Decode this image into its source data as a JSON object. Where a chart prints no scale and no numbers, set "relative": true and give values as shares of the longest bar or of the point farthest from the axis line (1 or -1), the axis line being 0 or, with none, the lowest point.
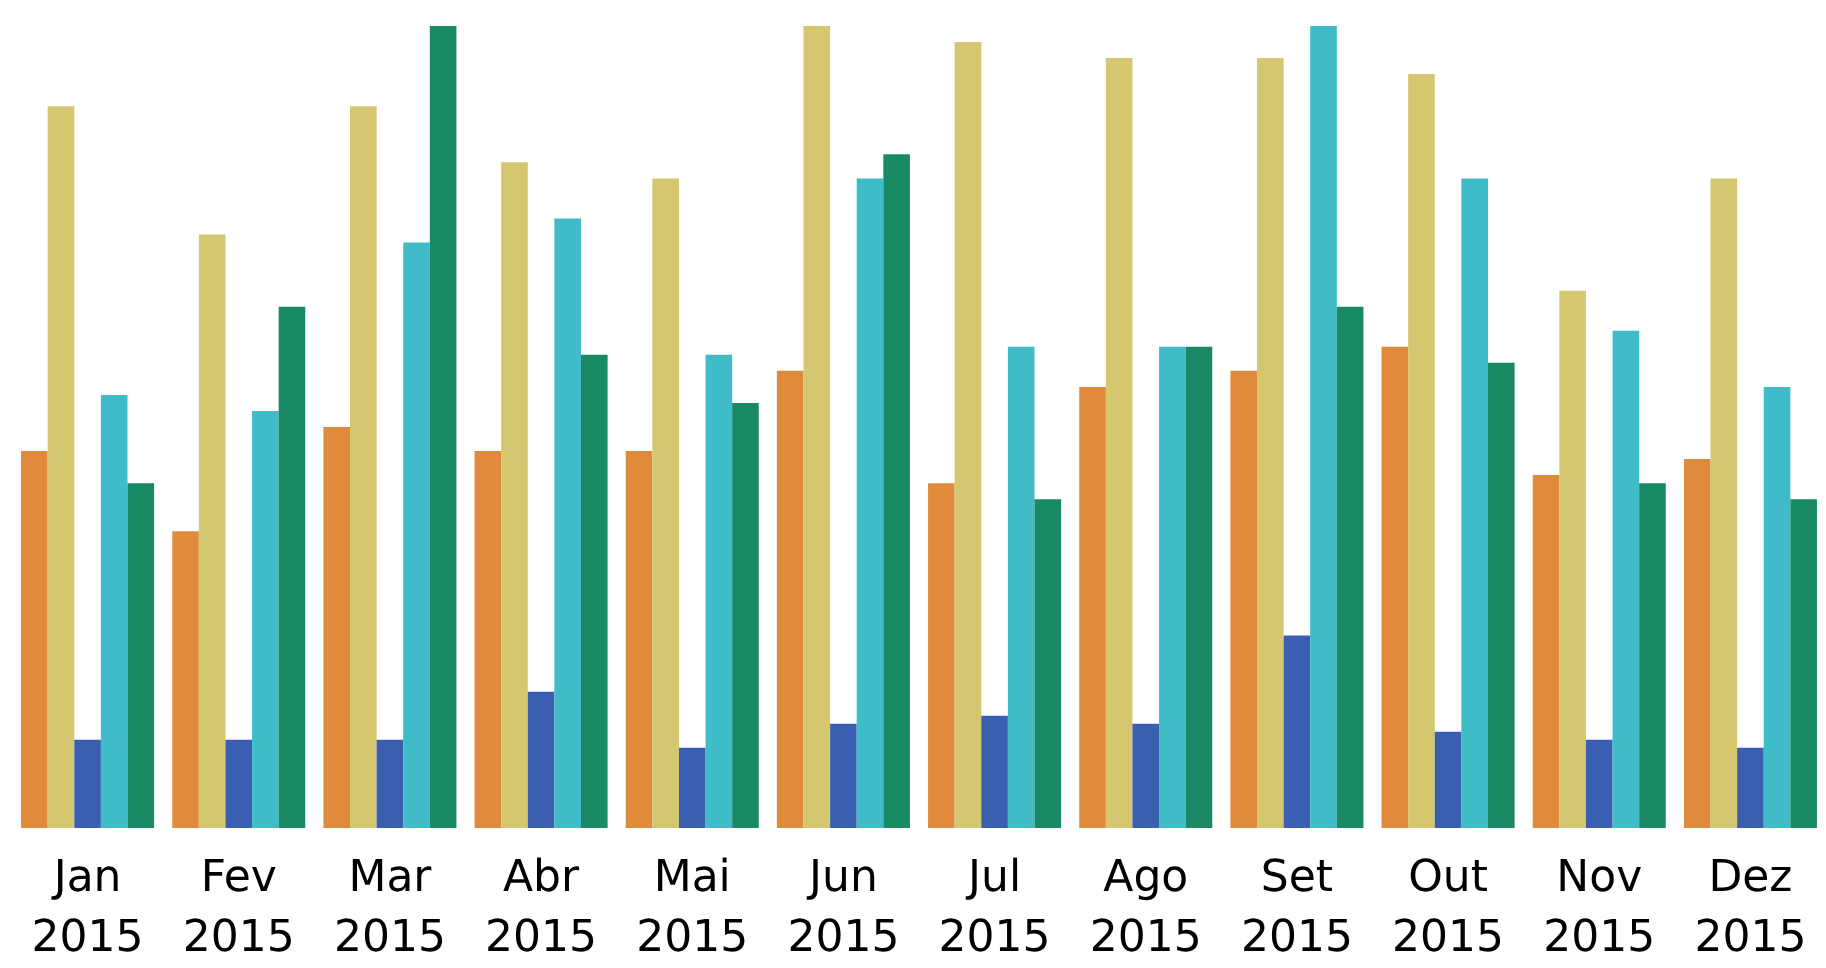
{
  "chart_data": {
    "type": "bar",
    "relative": true,
    "categories": [
      "Jan\n2015",
      "Fev\n2015",
      "Mar\n2015",
      "Abr\n2015",
      "Mai\n2015",
      "Jun\n2015",
      "Jul\n2015",
      "Ago\n2015",
      "Set\n2015",
      "Out\n2015",
      "Nov\n2015",
      "Dez\n2015"
    ],
    "series": [
      {
        "color": "#e08a3c",
        "values": [
          0.47,
          0.37,
          0.5,
          0.47,
          0.47,
          0.57,
          0.43,
          0.55,
          0.57,
          0.6,
          0.44,
          0.46
        ]
      },
      {
        "color": "#d4c770",
        "values": [
          0.9,
          0.74,
          0.9,
          0.83,
          0.81,
          1,
          0.98,
          0.96,
          0.96,
          0.94,
          0.67,
          0.81
        ]
      },
      {
        "color": "#3a5fb0",
        "values": [
          0.11,
          0.11,
          0.11,
          0.17,
          0.1,
          0.13,
          0.14,
          0.13,
          0.24,
          0.12,
          0.11,
          0.1
        ]
      },
      {
        "color": "#3fbcc8",
        "values": [
          0.54,
          0.52,
          0.73,
          0.76,
          0.59,
          0.81,
          0.6,
          0.6,
          1,
          0.81,
          0.62,
          0.55
        ]
      },
      {
        "color": "#1a8a66",
        "values": [
          0.43,
          0.65,
          1,
          0.59,
          0.53,
          0.84,
          0.41,
          0.6,
          0.65,
          0.58,
          0.43,
          0.41
        ]
      }
    ]
  }
}
